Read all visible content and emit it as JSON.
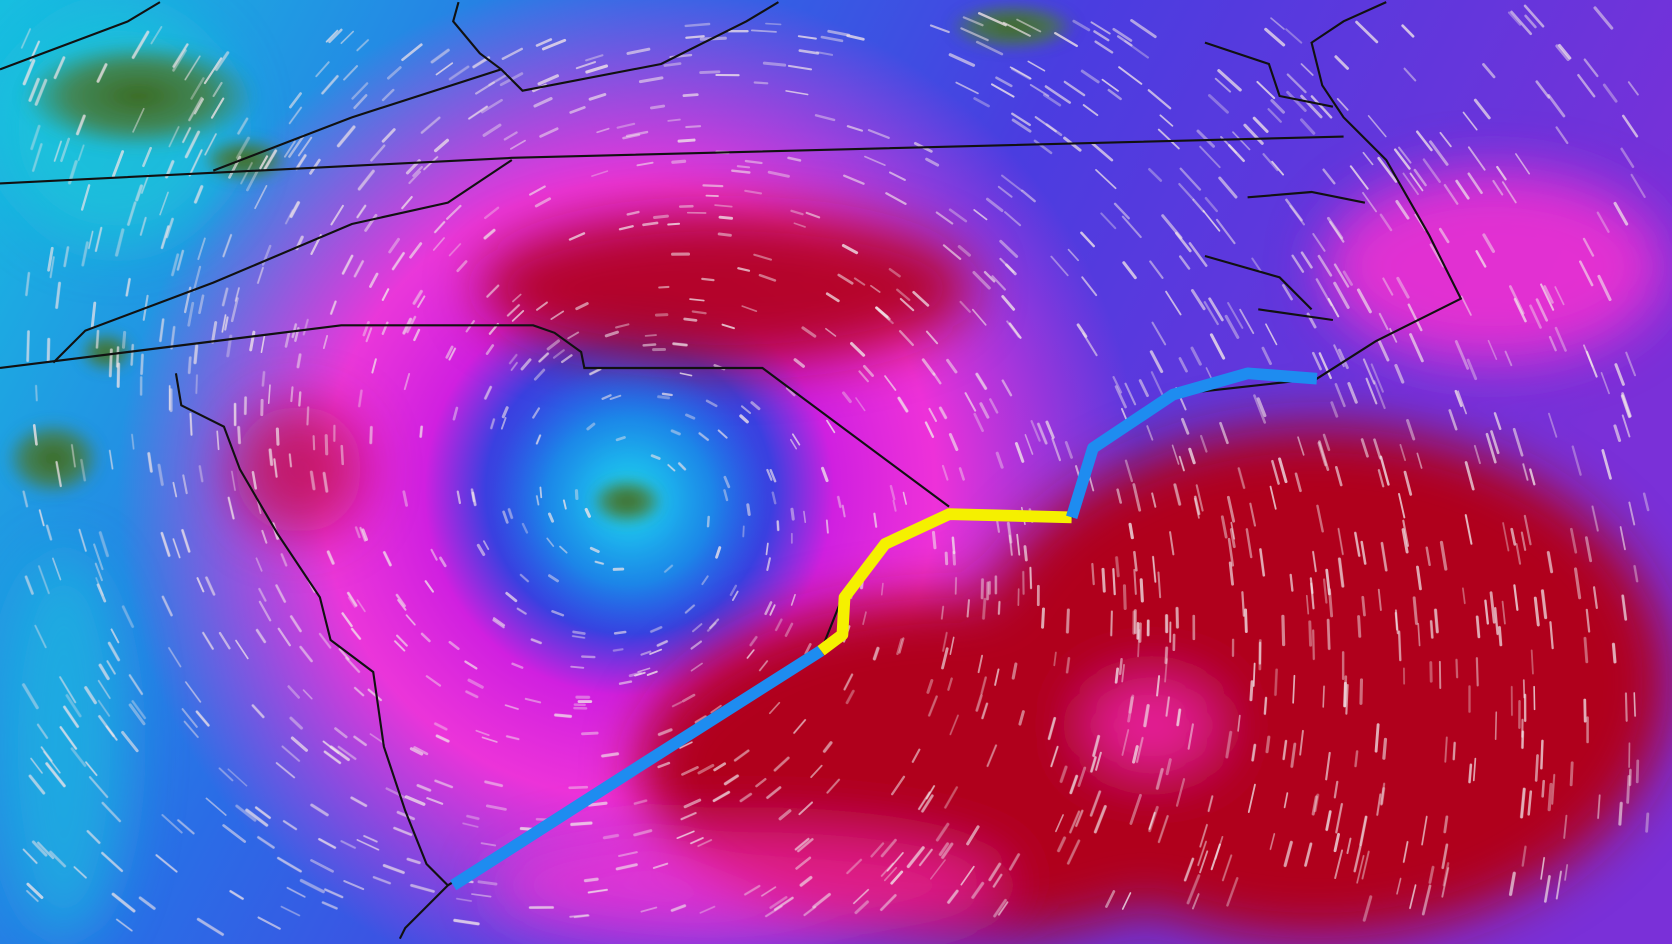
{
  "map": {
    "layer": "wind-speed-field",
    "colors": {
      "low": "#12c8e0",
      "moderate": "#2a4ee8",
      "high": "#ff20d8",
      "extreme": "#b0001a",
      "calm_ground": "#4a7a3a",
      "borders": "#111111",
      "wind_particles": "#f2e6ea"
    },
    "coastal_warnings": [
      {
        "type": "warning-segment-south",
        "color": "#1e8cf0"
      },
      {
        "type": "warning-segment-center",
        "color": "#f5f000"
      },
      {
        "type": "warning-segment-north",
        "color": "#1e8cf0"
      }
    ]
  }
}
